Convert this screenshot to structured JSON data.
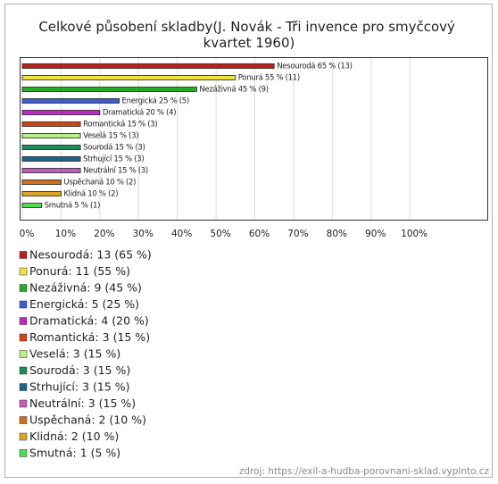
{
  "chart_data": {
    "type": "barh",
    "title": "Celkové působení skladby(J. Novák - Tři invence pro smyčcový kvartet 1960)",
    "categories": [
      "Nesourodá",
      "Ponurá",
      "Nezáživná",
      "Energická",
      "Dramatická",
      "Romantická",
      "Veselá",
      "Sourodá",
      "Strhující",
      "Neutrální",
      "Uspěchaná",
      "Klidná",
      "Smutná"
    ],
    "values": [
      65,
      55,
      45,
      25,
      20,
      15,
      15,
      15,
      15,
      15,
      10,
      10,
      5
    ],
    "value_labels": [
      "Nesourodá 65 % (13)",
      "Ponurá 55 % (11)",
      "Nezáživná 45 % (9)",
      "Energická 25 % (5)",
      "Dramatická 20 % (4)",
      "Romantická 15 % (3)",
      "Veselá 15 % (3)",
      "Sourodá 15 % (3)",
      "Strhující 15 % (3)",
      "Neutrální 15 % (3)",
      "Uspěchaná 10 % (2)",
      "Klidná 10 % (2)",
      "Smutná 5 % (1)"
    ],
    "legend_labels": [
      "Nesourodá: 13 (65 %)",
      "Ponurá: 11 (55 %)",
      "Nezáživná: 9 (45 %)",
      "Energická: 5 (25 %)",
      "Dramatická: 4 (20 %)",
      "Romantická: 3 (15 %)",
      "Veselá: 3 (15 %)",
      "Sourodá: 3 (15 %)",
      "Strhující: 3 (15 %)",
      "Neutrální: 3 (15 %)",
      "Uspěchaná: 2 (10 %)",
      "Klidná: 2 (10 %)",
      "Smutná: 1 (5 %)"
    ],
    "colors": [
      "#b8201e",
      "#f2e040",
      "#2aaa2a",
      "#3c5cd0",
      "#c028c0",
      "#d04418",
      "#b8f08a",
      "#1e8a58",
      "#1e6484",
      "#c25cb4",
      "#d06e1c",
      "#e0a424",
      "#4ce04c"
    ],
    "xlim": [
      0,
      120
    ],
    "xticks": [
      {
        "value": 0,
        "label": "0%"
      },
      {
        "value": 10,
        "label": "10%"
      },
      {
        "value": 20,
        "label": "20%"
      },
      {
        "value": 30,
        "label": "30%"
      },
      {
        "value": 40,
        "label": "40%"
      },
      {
        "value": 50,
        "label": "50%"
      },
      {
        "value": 60,
        "label": "60%"
      },
      {
        "value": 70,
        "label": "70%"
      },
      {
        "value": 80,
        "label": "80%"
      },
      {
        "value": 90,
        "label": "90%"
      },
      {
        "value": 100,
        "label": "100%"
      }
    ],
    "grid": true,
    "source": "zdroj: https://exil-a-hudba-porovnani-sklad.vyplnto.cz"
  }
}
